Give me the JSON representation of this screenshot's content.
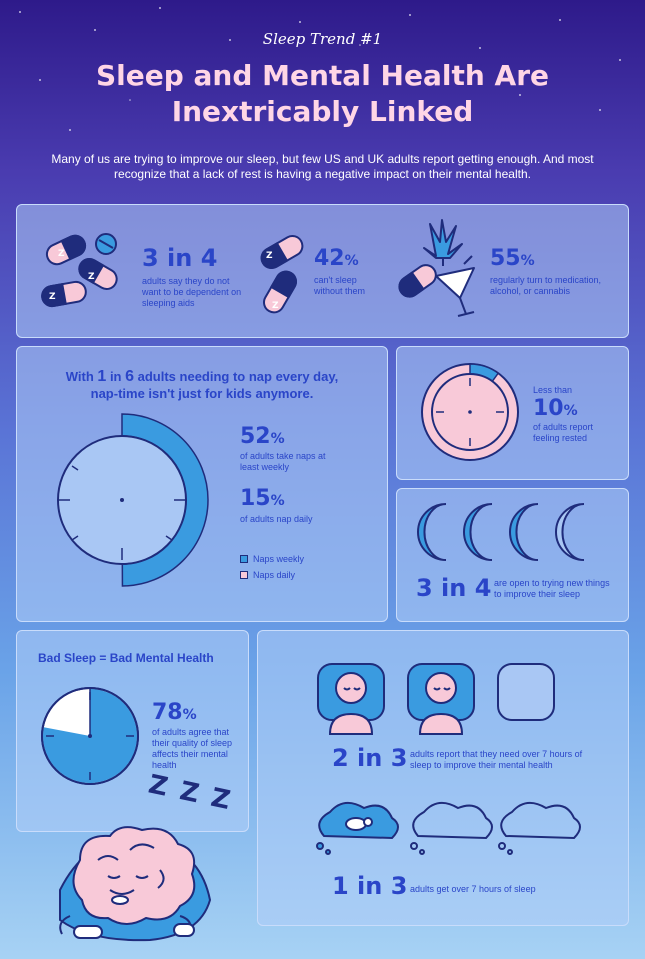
{
  "header": {
    "kicker": "Sleep Trend #1",
    "title": "Sleep and Mental Health Are Inextricably Linked",
    "intro": "Many of us are trying to improve our sleep, but few US and UK adults report getting enough. And most recognize that a lack of rest is having a negative impact on their mental health."
  },
  "top_stats": [
    {
      "value": "3 in 4",
      "text": "adults say they do not want to be dependent on sleeping aids"
    },
    {
      "value": "42",
      "unit": "%",
      "text": "can't sleep without them"
    },
    {
      "value": "55",
      "unit": "%",
      "text": "regularly turn to medication, alcohol, or cannabis"
    }
  ],
  "nap": {
    "heading_pre": "With ",
    "heading_num1": "1",
    "heading_mid": " in ",
    "heading_num2": "6",
    "heading_post": " adults needing to nap every day,",
    "heading_line2": "nap-time isn't just for kids anymore.",
    "stat1_value": "52",
    "stat1_unit": "%",
    "stat1_text": "of adults take naps at least weekly",
    "stat2_value": "15",
    "stat2_unit": "%",
    "stat2_text": "of adults nap daily",
    "legend_weekly": "Naps weekly",
    "legend_daily": "Naps daily",
    "weekly_fraction": 0.52,
    "daily_fraction": 0.15
  },
  "rested": {
    "pre": "Less than",
    "value": "10",
    "unit": "%",
    "text": "of adults report feeling rested",
    "fraction": 0.1
  },
  "moons": {
    "value": "3 in 4",
    "text": "are open to trying new things to improve their sleep"
  },
  "bad_sleep": {
    "title": "Bad Sleep = Bad Mental Health",
    "value": "78",
    "unit": "%",
    "text": "of adults agree that their quality of sleep affects their mental health",
    "fraction": 0.78,
    "zzz": "Z Z Z"
  },
  "hours": {
    "stat1_value": "2 in 3",
    "stat1_text": "adults report that they need over 7 hours of sleep to improve their mental health",
    "stat2_value": "1 in 3",
    "stat2_text": "adults get over 7 hours of sleep"
  },
  "colors": {
    "navy": "#1f2c7c",
    "blue": "#3a9be0",
    "pink": "#f8c9d8",
    "stat_blue": "#2a45c8",
    "title_pink": "#ffd6e6"
  }
}
